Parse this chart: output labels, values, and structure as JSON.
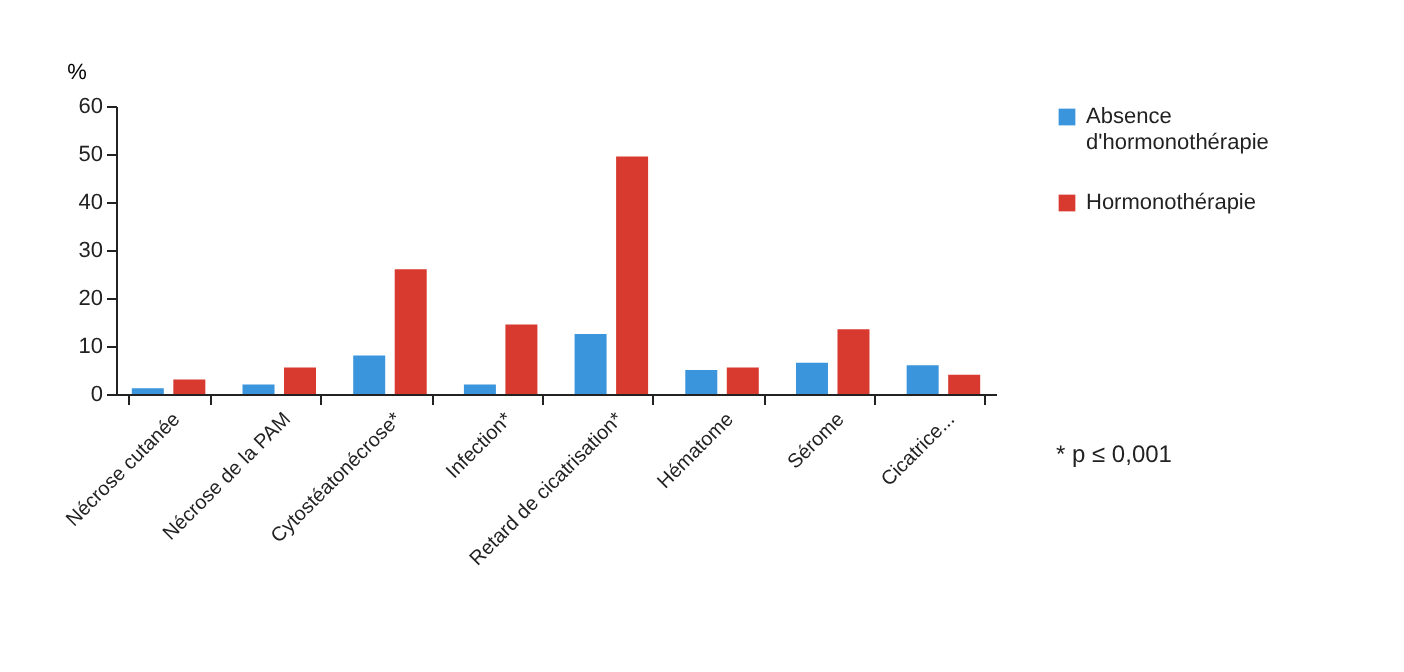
{
  "chart_data": {
    "type": "bar",
    "categories": [
      "Nécrose cutanée",
      "Nécrose de la PAM",
      "Cytostéatonécrose*",
      "Infection*",
      "Retard de cicatrisation*",
      "Hématome",
      "Sérome",
      "Cicatrice..."
    ],
    "series": [
      {
        "name": "Absence d'hormonothérapie",
        "color": "#3b95dd",
        "values": [
          1.2,
          2,
          8,
          2,
          12.5,
          5,
          6.5,
          6
        ]
      },
      {
        "name": "Hormonothérapie",
        "color": "#d93a30",
        "values": [
          3,
          5.5,
          26,
          14.5,
          49.5,
          5.5,
          13.5,
          4
        ]
      }
    ],
    "ylabel": "%",
    "ylim": [
      0,
      60
    ],
    "yticks": [
      0,
      10,
      20,
      30,
      40,
      50,
      60
    ],
    "grid": false,
    "legend": "right",
    "annotations": [
      "* p ≤ 0,001"
    ]
  }
}
